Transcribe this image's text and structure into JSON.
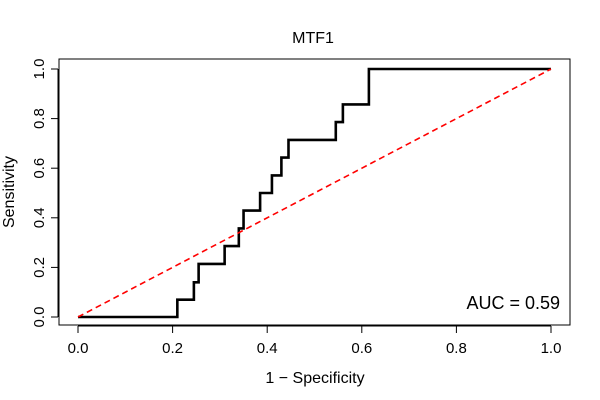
{
  "chart_data": {
    "type": "line",
    "title": "MTF1",
    "xlabel": "1 − Specificity",
    "ylabel": "Sensitivity",
    "xlim": [
      0,
      1
    ],
    "ylim": [
      0,
      1
    ],
    "x_ticks": [
      0.0,
      0.2,
      0.4,
      0.6,
      0.8,
      1.0
    ],
    "x_tick_labels": [
      "0.0",
      "0.2",
      "0.4",
      "0.6",
      "0.8",
      "1.0"
    ],
    "y_ticks": [
      0.0,
      0.2,
      0.4,
      0.6,
      0.8,
      1.0
    ],
    "y_tick_labels": [
      "0.0",
      "0.2",
      "0.4",
      "0.6",
      "0.8",
      "1.0"
    ],
    "grid": false,
    "annotation": "AUC = 0.59",
    "series": [
      {
        "name": "ROC curve",
        "color": "#000000",
        "style": "solid",
        "x": [
          0.0,
          0.21,
          0.21,
          0.245,
          0.245,
          0.255,
          0.255,
          0.31,
          0.31,
          0.34,
          0.34,
          0.35,
          0.35,
          0.385,
          0.385,
          0.41,
          0.41,
          0.43,
          0.43,
          0.445,
          0.445,
          0.545,
          0.545,
          0.56,
          0.56,
          0.615,
          0.615,
          1.0
        ],
        "y": [
          0.0,
          0.0,
          0.07,
          0.07,
          0.14,
          0.14,
          0.214,
          0.214,
          0.286,
          0.286,
          0.357,
          0.357,
          0.429,
          0.429,
          0.5,
          0.5,
          0.571,
          0.571,
          0.643,
          0.643,
          0.714,
          0.714,
          0.786,
          0.786,
          0.857,
          0.857,
          1.0,
          1.0
        ]
      },
      {
        "name": "Chance line",
        "color": "#ff0000",
        "style": "dashed",
        "x": [
          0.0,
          1.0
        ],
        "y": [
          0.0,
          1.0
        ]
      }
    ]
  }
}
